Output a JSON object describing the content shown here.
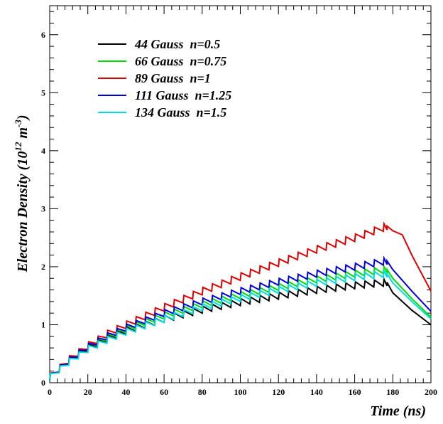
{
  "chart_data": {
    "type": "line",
    "xlabel": "Time (ns)",
    "ylabel": {
      "base": "Electron Density (10",
      "exp1": "12",
      "mid": " m",
      "exp2": "-3",
      "end": ")"
    },
    "xlim": [
      0,
      200
    ],
    "ylim": [
      0,
      6.5
    ],
    "x_ticks": [
      0,
      20,
      40,
      60,
      80,
      100,
      120,
      140,
      160,
      180,
      200
    ],
    "y_ticks": [
      0,
      1,
      2,
      3,
      4,
      5,
      6
    ],
    "x_tick_labels": [
      "0",
      "20",
      "40",
      "60",
      "80",
      "100",
      "120",
      "140",
      "160",
      "180",
      "200"
    ],
    "y_tick_labels": [
      "0",
      "1",
      "2",
      "3",
      "4",
      "5",
      "6"
    ],
    "grid": false,
    "legend_position": "top-left",
    "sawtooth_period_ns": 5,
    "series": [
      {
        "name": "44 Gauss  n=0.5",
        "color": "#000000",
        "x": [
          0,
          10,
          20,
          30,
          40,
          60,
          80,
          100,
          120,
          140,
          160,
          177,
          180,
          190,
          200
        ],
        "y": [
          0.1,
          0.38,
          0.6,
          0.76,
          0.9,
          1.1,
          1.26,
          1.39,
          1.5,
          1.6,
          1.68,
          1.73,
          1.55,
          1.25,
          1.0
        ],
        "sawtooth_amplitude": 0.12
      },
      {
        "name": "66 Gauss  n=0.75",
        "color": "#00dd00",
        "x": [
          0,
          10,
          20,
          30,
          40,
          60,
          80,
          100,
          120,
          140,
          160,
          177,
          180,
          190,
          200
        ],
        "y": [
          0.1,
          0.38,
          0.62,
          0.78,
          0.93,
          1.16,
          1.35,
          1.51,
          1.65,
          1.78,
          1.88,
          1.95,
          1.8,
          1.45,
          1.13
        ],
        "sawtooth_amplitude": 0.12
      },
      {
        "name": "89 Gauss  n=1",
        "color": "#dd0000",
        "x": [
          0,
          10,
          20,
          30,
          40,
          60,
          80,
          100,
          120,
          140,
          160,
          177,
          180,
          185,
          190,
          200
        ],
        "y": [
          0.1,
          0.4,
          0.64,
          0.84,
          1.0,
          1.3,
          1.58,
          1.83,
          2.07,
          2.3,
          2.5,
          2.7,
          2.62,
          2.55,
          2.2,
          1.58
        ],
        "sawtooth_amplitude": 0.13
      },
      {
        "name": "111 Gauss  n=1.25",
        "color": "#0000dd",
        "x": [
          0,
          10,
          20,
          30,
          40,
          60,
          80,
          100,
          120,
          140,
          160,
          177,
          180,
          190,
          200
        ],
        "y": [
          0.1,
          0.38,
          0.62,
          0.8,
          0.95,
          1.2,
          1.4,
          1.58,
          1.74,
          1.88,
          2.0,
          2.1,
          1.95,
          1.58,
          1.23
        ],
        "sawtooth_amplitude": 0.12
      },
      {
        "name": "134 Gauss  n=1.5",
        "color": "#00dddd",
        "x": [
          0,
          10,
          20,
          30,
          40,
          60,
          80,
          100,
          120,
          140,
          160,
          177,
          180,
          190,
          200
        ],
        "y": [
          0.1,
          0.36,
          0.58,
          0.74,
          0.88,
          1.1,
          1.3,
          1.46,
          1.6,
          1.72,
          1.82,
          1.88,
          1.72,
          1.4,
          1.1
        ],
        "sawtooth_amplitude": 0.12
      }
    ]
  }
}
